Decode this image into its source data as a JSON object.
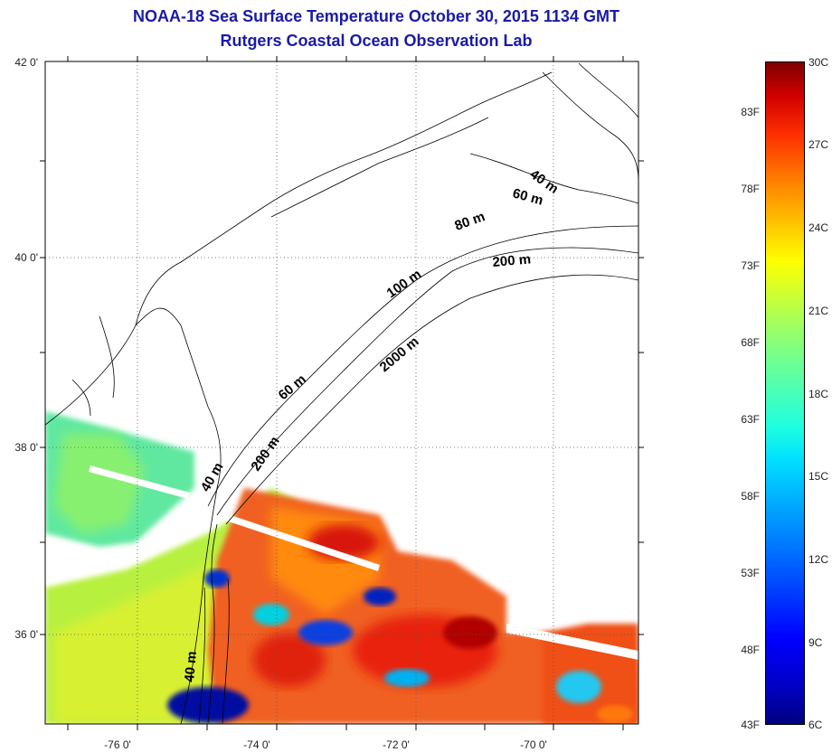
{
  "title": {
    "line1": "NOAA-18 Sea Surface Temperature October 30, 2015 1134 GMT",
    "line2": "Rutgers Coastal Ocean Observation Lab"
  },
  "map": {
    "lat_ticks": [
      "42 0'",
      "40 0'",
      "38 0'",
      "36 0'"
    ],
    "lon_ticks": [
      "-76 0'",
      "-74 0'",
      "-72 0'",
      "-70 0'"
    ],
    "isobath_labels": [
      "40 m",
      "60 m",
      "80 m",
      "200 m",
      "100 m",
      "2000 m",
      "60 m",
      "200 m",
      "40 m",
      "40 m"
    ]
  },
  "colorbar": {
    "fahrenheit": [
      "83F",
      "78F",
      "73F",
      "68F",
      "63F",
      "58F",
      "53F",
      "48F",
      "43F"
    ],
    "celsius": [
      "30C",
      "27C",
      "24C",
      "21C",
      "18C",
      "15C",
      "12C",
      "9C",
      "6C"
    ]
  },
  "colors": {
    "title": "#1a1aa8",
    "coast": "#000000",
    "warm": "#e83010",
    "cool": "#0030d0"
  }
}
